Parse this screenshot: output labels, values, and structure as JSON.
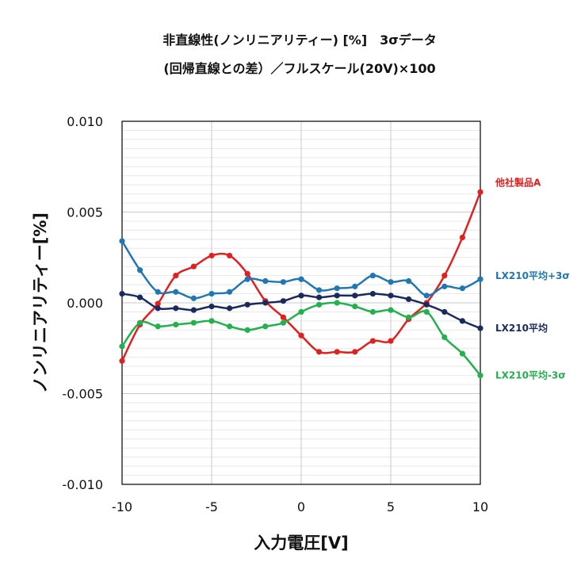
{
  "chart_data": {
    "type": "line",
    "title": "非直線性(ノンリニアリティー) [%]　3σデータ",
    "subtitle": "(回帰直線との差）／フルスケール(20V)×100",
    "xlabel": "入力電圧[V]",
    "ylabel": "ノンリニアリティー[%]",
    "xlim": [
      -10,
      10
    ],
    "ylim": [
      -0.01,
      0.01
    ],
    "x_ticks": [
      -10,
      -5,
      0,
      5,
      10
    ],
    "y_ticks": [
      0.01,
      0.005,
      0.0,
      -0.005,
      -0.01
    ],
    "x_tick_labels": [
      "-10",
      "-5",
      "0",
      "5",
      "10"
    ],
    "y_tick_labels": [
      "0.010",
      "0.005",
      "0.000",
      "-0.005",
      "-0.010"
    ],
    "grid": {
      "vertical": true,
      "horizontal": true
    },
    "legend_placement": "labels at right end of each line",
    "x": [
      -10,
      -9,
      -8,
      -7,
      -6,
      -5,
      -4,
      -3,
      -2,
      -1,
      0,
      1,
      2,
      3,
      4,
      5,
      6,
      7,
      8,
      9,
      10
    ],
    "series": [
      {
        "name": "他社製品A",
        "color": "#e31f1f",
        "values": [
          -0.0032,
          -0.0012,
          -5e-05,
          0.0015,
          0.002,
          0.0026,
          0.0026,
          0.0016,
          0.0001,
          -0.0008,
          -0.0018,
          -0.0027,
          -0.0027,
          -0.0027,
          -0.0021,
          -0.0021,
          -0.0009,
          0.0,
          0.0015,
          0.0036,
          0.0061
        ]
      },
      {
        "name": "LX210平均+3σ",
        "color": "#1f77b4",
        "values": [
          0.0034,
          0.0018,
          0.0006,
          0.0006,
          0.00025,
          0.0005,
          0.0006,
          0.0013,
          0.0012,
          0.00115,
          0.0013,
          0.0007,
          0.0008,
          0.0009,
          0.0015,
          0.00115,
          0.0012,
          0.0004,
          0.0009,
          0.0008,
          0.0013
        ]
      },
      {
        "name": "LX210平均",
        "color": "#1a2a5e",
        "values": [
          0.0005,
          0.0003,
          -0.0003,
          -0.0003,
          -0.0004,
          -0.0002,
          -0.0003,
          -0.0001,
          0.0,
          0.0001,
          0.0004,
          0.0003,
          0.0004,
          0.0004,
          0.0005,
          0.0004,
          0.0002,
          -0.0001,
          -0.0005,
          -0.001,
          -0.0014
        ]
      },
      {
        "name": "LX210平均-3σ",
        "color": "#22b14c",
        "values": [
          -0.0024,
          -0.0011,
          -0.0013,
          -0.0012,
          -0.0011,
          -0.001,
          -0.0013,
          -0.0015,
          -0.0013,
          -0.0011,
          -0.0005,
          -0.0001,
          0.0,
          -0.0002,
          -0.0005,
          -0.0004,
          -0.0008,
          -0.0005,
          -0.0019,
          -0.0028,
          -0.004
        ]
      }
    ]
  }
}
